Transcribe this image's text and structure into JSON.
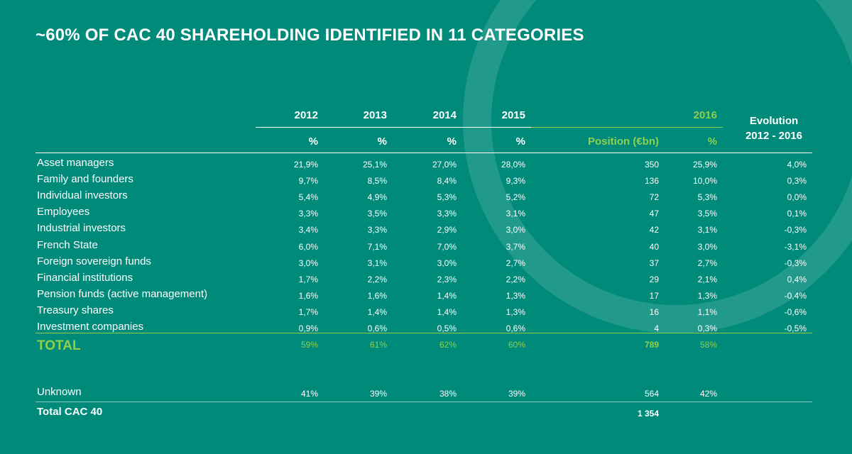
{
  "title": "~60% OF CAC 40 SHAREHOLDING IDENTIFIED IN 11 CATEGORIES",
  "colors": {
    "background": "#008a7a",
    "accent": "#8fd14f",
    "text": "#ffffff"
  },
  "chart_data": {
    "type": "table",
    "years": [
      "2012",
      "2013",
      "2014",
      "2015",
      "2016"
    ],
    "subheaders": {
      "2012": "%",
      "2013": "%",
      "2014": "%",
      "2015": "%",
      "position": "Position (€bn)",
      "2016": "%"
    },
    "evolution_header": {
      "line1": "Evolution",
      "line2": "2012 - 2016"
    },
    "rows": [
      {
        "category": "Asset managers",
        "y2012": "21,9%",
        "y2013": "25,1%",
        "y2014": "27,0%",
        "y2015": "28,0%",
        "position": "350",
        "y2016": "25,9%",
        "evolution": "4,0%"
      },
      {
        "category": "Family and founders",
        "y2012": "9,7%",
        "y2013": "8,5%",
        "y2014": "8,4%",
        "y2015": "9,3%",
        "position": "136",
        "y2016": "10,0%",
        "evolution": "0,3%"
      },
      {
        "category": "Individual investors",
        "y2012": "5,4%",
        "y2013": "4,9%",
        "y2014": "5,3%",
        "y2015": "5,2%",
        "position": "72",
        "y2016": "5,3%",
        "evolution": "0,0%"
      },
      {
        "category": "Employees",
        "y2012": "3,3%",
        "y2013": "3,5%",
        "y2014": "3,3%",
        "y2015": "3,1%",
        "position": "47",
        "y2016": "3,5%",
        "evolution": "0,1%"
      },
      {
        "category": "Industrial investors",
        "y2012": "3,4%",
        "y2013": "3,3%",
        "y2014": "2,9%",
        "y2015": "3,0%",
        "position": "42",
        "y2016": "3,1%",
        "evolution": "-0,3%"
      },
      {
        "category": "French State",
        "y2012": "6,0%",
        "y2013": "7,1%",
        "y2014": "7,0%",
        "y2015": "3,7%",
        "position": "40",
        "y2016": "3,0%",
        "evolution": "-3,1%"
      },
      {
        "category": "Foreign sovereign funds",
        "y2012": "3,0%",
        "y2013": "3,1%",
        "y2014": "3,0%",
        "y2015": "2,7%",
        "position": "37",
        "y2016": "2,7%",
        "evolution": "-0,3%"
      },
      {
        "category": "Financial institutions",
        "y2012": "1,7%",
        "y2013": "2,2%",
        "y2014": "2,3%",
        "y2015": "2,2%",
        "position": "29",
        "y2016": "2,1%",
        "evolution": "0,4%"
      },
      {
        "category": "Pension funds (active management)",
        "y2012": "1,6%",
        "y2013": "1,6%",
        "y2014": "1,4%",
        "y2015": "1,3%",
        "position": "17",
        "y2016": "1,3%",
        "evolution": "-0,4%"
      },
      {
        "category": "Treasury shares",
        "y2012": "1,7%",
        "y2013": "1,4%",
        "y2014": "1,4%",
        "y2015": "1,3%",
        "position": "16",
        "y2016": "1,1%",
        "evolution": "-0,6%"
      },
      {
        "category": "Investment companies",
        "y2012": "0,9%",
        "y2013": "0,6%",
        "y2014": "0,5%",
        "y2015": "0,6%",
        "position": "4",
        "y2016": "0,3%",
        "evolution": "-0,5%"
      }
    ],
    "total": {
      "category": "TOTAL",
      "y2012": "59%",
      "y2013": "61%",
      "y2014": "62%",
      "y2015": "60%",
      "position": "789",
      "y2016": "58%"
    },
    "unknown": {
      "category": "Unknown",
      "y2012": "41%",
      "y2013": "39%",
      "y2014": "38%",
      "y2015": "39%",
      "position": "564",
      "y2016": "42%"
    },
    "total_cac40": {
      "category": "Total CAC 40",
      "position": "1 354"
    }
  }
}
